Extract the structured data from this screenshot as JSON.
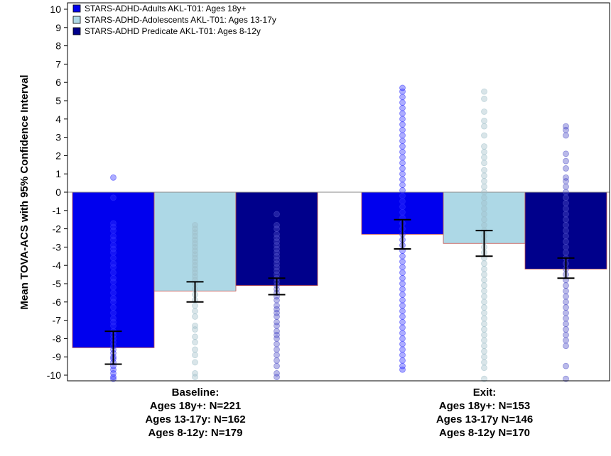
{
  "chart_data": {
    "type": "bar",
    "ylabel": "Mean TOVA-ACS with 95% Confidence Interval",
    "ylim": [
      -10,
      10
    ],
    "yticks": [
      "-10",
      "-9",
      "-8",
      "-7",
      "-6",
      "-5",
      "-4",
      "-3",
      "-2",
      "-1",
      "0",
      "1",
      "2",
      "3",
      "4",
      "5",
      "6",
      "7",
      "8",
      "9",
      "10"
    ],
    "grid": false,
    "legend_position": "top-left",
    "categories": [
      {
        "lines": [
          "Baseline:",
          "Ages 18y+: N=221",
          "Ages 13-17y: N=162",
          "Ages 8-12y: N=179"
        ]
      },
      {
        "lines": [
          "Exit:",
          "Ages 18y+: N=153",
          "Ages 13-17y N=146",
          "Ages 8-12y N=170"
        ]
      }
    ],
    "series": [
      {
        "name": "STARS-ADHD-Adults AKL-T01: Ages 18y+",
        "color": "#0000ee",
        "point_color": "#3333ff",
        "values": [
          -8.5,
          -2.3
        ],
        "ci_low": [
          -9.4,
          -3.1
        ],
        "ci_high": [
          -7.6,
          -1.5
        ],
        "points": [
          [
            0.8,
            -0.3,
            -1.7,
            -1.9,
            -2.1,
            -2.4,
            -2.6,
            -2.9,
            -3.1,
            -3.3,
            -3.6,
            -3.9,
            -4.1,
            -4.4,
            -4.7,
            -4.9,
            -5.2,
            -5.5,
            -5.8,
            -6.0,
            -6.3,
            -6.6,
            -6.9,
            -7.1,
            -7.3,
            -7.6,
            -7.8,
            -8.0,
            -8.2,
            -8.4,
            -8.6,
            -8.8,
            -9.0,
            -9.1,
            -9.3,
            -9.5,
            -9.7,
            -9.9,
            -10.1,
            -10.2
          ],
          [
            5.7,
            5.5,
            5.2,
            4.9,
            4.6,
            4.3,
            4.0,
            3.7,
            3.4,
            3.1,
            2.8,
            2.5,
            2.2,
            1.9,
            1.6,
            1.3,
            1.0,
            0.7,
            0.4,
            0.1,
            -0.2,
            -0.5,
            -0.8,
            -1.1,
            -1.4,
            -1.7,
            -2.0,
            -2.3,
            -2.6,
            -2.9,
            -3.2,
            -3.5,
            -3.8,
            -4.1,
            -4.4,
            -4.7,
            -5.0,
            -5.3,
            -5.6,
            -5.9,
            -6.2,
            -6.5,
            -6.8,
            -7.1,
            -7.4,
            -7.7,
            -8.0,
            -8.3,
            -8.6,
            -8.9,
            -9.2,
            -9.5,
            -9.7
          ]
        ]
      },
      {
        "name": "STARS-ADHD-Adolescents AKL-T01: Ages 13-17y",
        "color": "#add8e6",
        "point_color": "#9fbfc8",
        "values": [
          -5.4,
          -2.8
        ],
        "ci_low": [
          -6.0,
          -3.5
        ],
        "ci_high": [
          -4.9,
          -2.1
        ],
        "points": [
          [
            -1.8,
            -2.0,
            -2.2,
            -2.4,
            -2.6,
            -2.8,
            -3.0,
            -3.2,
            -3.4,
            -3.6,
            -3.8,
            -4.0,
            -4.2,
            -4.4,
            -4.6,
            -4.8,
            -5.0,
            -5.3,
            -5.6,
            -5.9,
            -6.2,
            -6.5,
            -6.8,
            -7.3,
            -7.5,
            -7.9,
            -8.2,
            -8.6,
            -8.9,
            -9.3,
            -9.9,
            -10.1
          ],
          [
            5.5,
            5.1,
            4.4,
            3.9,
            3.6,
            3.1,
            2.5,
            2.2,
            1.9,
            1.6,
            1.2,
            0.9,
            0.6,
            0.3,
            0.0,
            -0.3,
            -0.6,
            -0.9,
            -1.2,
            -1.5,
            -1.8,
            -2.1,
            -2.4,
            -2.7,
            -3.0,
            -3.3,
            -3.6,
            -3.9,
            -4.2,
            -4.5,
            -4.8,
            -5.1,
            -5.4,
            -5.7,
            -6.0,
            -6.3,
            -6.6,
            -6.9,
            -7.2,
            -7.5,
            -7.8,
            -8.1,
            -8.4,
            -8.7,
            -9.0,
            -9.3,
            -9.6,
            -10.2
          ]
        ]
      },
      {
        "name": "STARS-ADHD Predicate AKL-T01: Ages 8-12y",
        "color": "#00008b",
        "point_color": "#5050c8",
        "values": [
          -5.1,
          -4.2
        ],
        "ci_low": [
          -5.6,
          -4.7
        ],
        "ci_high": [
          -4.7,
          -3.6
        ],
        "points": [
          [
            -1.2,
            -1.8,
            -2.0,
            -2.3,
            -2.5,
            -2.7,
            -2.9,
            -3.1,
            -3.3,
            -3.5,
            -3.7,
            -3.9,
            -4.1,
            -4.3,
            -4.5,
            -4.7,
            -4.9,
            -5.1,
            -5.3,
            -5.5,
            -5.7,
            -5.9,
            -6.2,
            -6.4,
            -6.6,
            -6.8,
            -7.1,
            -7.3,
            -7.6,
            -7.8,
            -8.0,
            -8.3,
            -8.6,
            -8.9,
            -9.2,
            -9.5,
            -9.9,
            -10.1
          ],
          [
            3.6,
            3.4,
            3.1,
            2.1,
            1.7,
            1.3,
            0.8,
            0.6,
            0.3,
            0.0,
            -0.3,
            -0.6,
            -0.9,
            -1.2,
            -1.5,
            -1.8,
            -2.1,
            -2.4,
            -2.7,
            -3.0,
            -3.3,
            -3.6,
            -3.9,
            -4.2,
            -4.5,
            -4.8,
            -5.1,
            -5.4,
            -5.7,
            -6.0,
            -6.3,
            -6.6,
            -6.9,
            -7.2,
            -7.5,
            -7.8,
            -8.1,
            -8.4,
            -9.5,
            -10.2
          ]
        ]
      }
    ]
  }
}
